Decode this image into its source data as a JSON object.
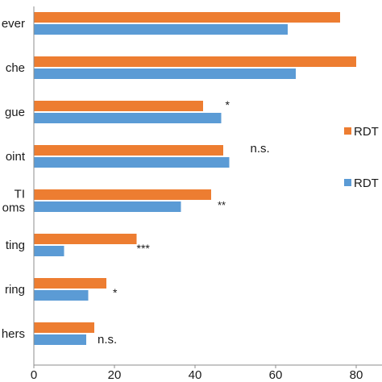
{
  "chart_data": {
    "type": "bar",
    "orientation": "horizontal",
    "categories": [
      "ever",
      "che",
      "gue",
      "oint",
      "TI\noms",
      "ting",
      "ring",
      "hers"
    ],
    "series": [
      {
        "name": "RDT",
        "color": "#ED7D31",
        "values": [
          76,
          80,
          42,
          47,
          44,
          25.5,
          18,
          15
        ]
      },
      {
        "name": "RDT",
        "color": "#5B9BD5",
        "values": [
          63,
          65,
          46.5,
          48.5,
          36.5,
          7.5,
          13.5,
          13
        ]
      }
    ],
    "significance": [
      "***",
      "***",
      "*",
      "n.s.",
      "**",
      "***",
      "*",
      "n.s."
    ],
    "x_ticks": [
      "0",
      "20",
      "40",
      "60",
      "80"
    ],
    "xlim": [
      0,
      85
    ],
    "legend_position": "right",
    "grid": false
  }
}
